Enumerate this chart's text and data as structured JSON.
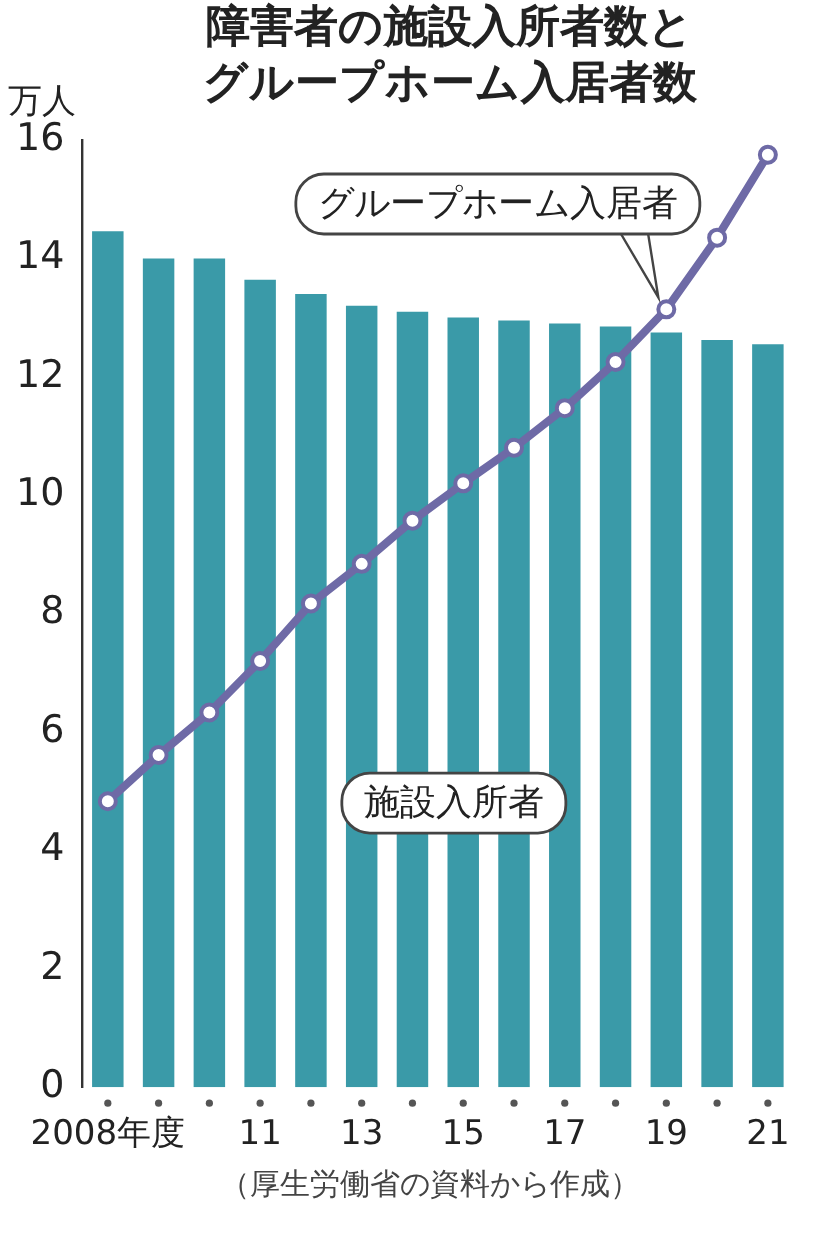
{
  "chart_data": {
    "type": "bar",
    "title": "障害者の施設入所者数とグループホーム入居者数",
    "ylabel": "万人",
    "categories": [
      "2008年度",
      null,
      null,
      "11",
      null,
      "13",
      null,
      "15",
      null,
      "17",
      null,
      "19",
      null,
      "21"
    ],
    "series": [
      {
        "name": "施設入所者",
        "color": "#3a9aa8",
        "values": [
          14.46,
          14.0,
          14.0,
          13.64,
          13.4,
          13.2,
          13.1,
          13.0,
          12.95,
          12.9,
          12.85,
          12.75,
          12.62,
          12.55
        ]
      },
      {
        "name": "グループホーム入居者",
        "type": "line",
        "color": "#6e6aa6",
        "marker": "circle",
        "values": [
          4.83,
          5.61,
          6.33,
          7.2,
          8.17,
          8.84,
          9.57,
          10.2,
          10.8,
          11.47,
          12.25,
          13.14,
          14.35,
          15.75
        ]
      }
    ],
    "ylim": [
      0,
      16
    ],
    "yticks": [
      0,
      2,
      4,
      6,
      8,
      10,
      12,
      14,
      16
    ],
    "grid": false,
    "legend": false,
    "annotations": [
      "（厚生労働省の資料から作成）"
    ]
  }
}
